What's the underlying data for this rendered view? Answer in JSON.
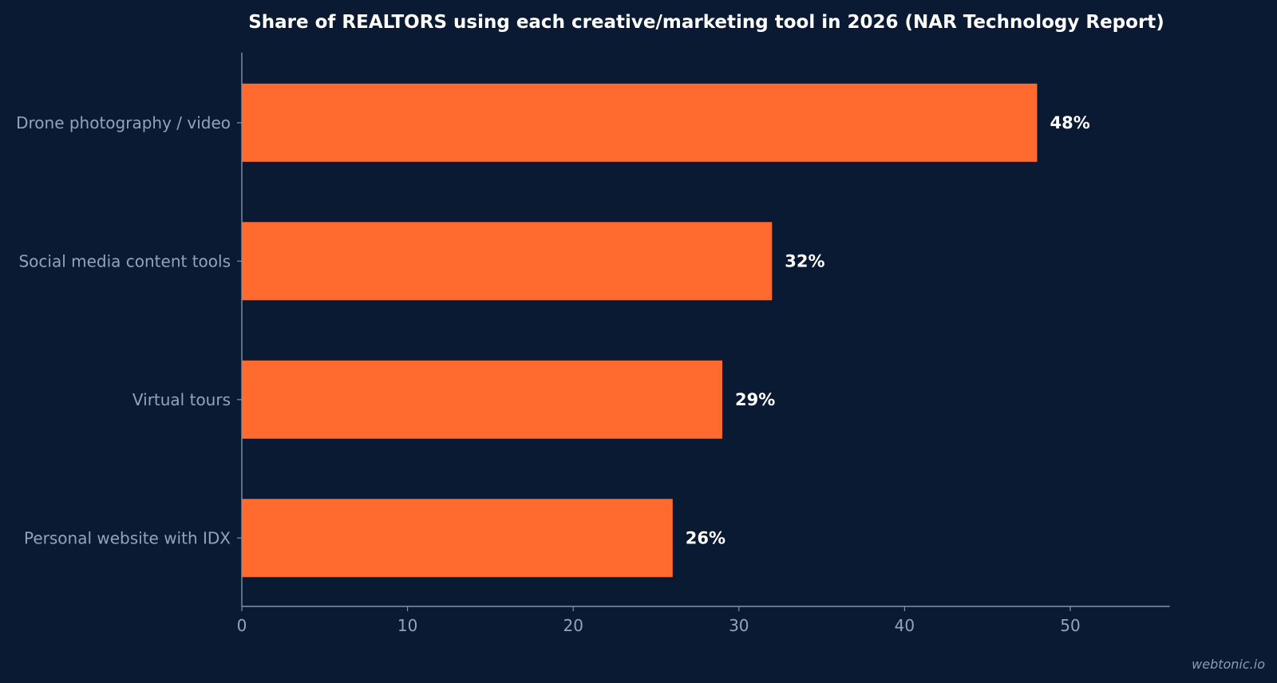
{
  "chart_data": {
    "type": "bar",
    "orientation": "horizontal",
    "title": "Share of REALTORS using each creative/marketing tool in 2026 (NAR Technology Report)",
    "xlabel": "",
    "ylabel": "",
    "categories": [
      "Drone photography / video",
      "Social media content tools",
      "Virtual tours",
      "Personal website with IDX"
    ],
    "values": [
      48,
      32,
      29,
      26
    ],
    "value_labels": [
      "48%",
      "32%",
      "29%",
      "26%"
    ],
    "xlim": [
      0,
      56
    ],
    "x_ticks": [
      0,
      10,
      20,
      30,
      40,
      50
    ],
    "x_tick_labels": [
      "0",
      "10",
      "20",
      "30",
      "40",
      "50"
    ],
    "grid": false,
    "legend": "none",
    "bar_color": "#ff6b2e",
    "background_color": "#0b1a33",
    "axis_color": "#8391a7"
  },
  "watermark": "webtonic.io"
}
